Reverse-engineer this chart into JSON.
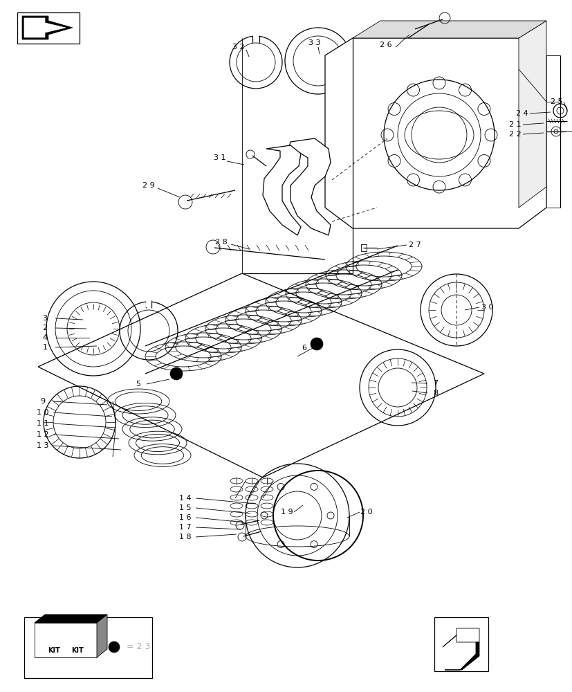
{
  "bg_color": "#ffffff",
  "figsize": [
    8.28,
    10.0
  ],
  "dpi": 100,
  "lw_thin": 0.6,
  "lw_med": 0.9,
  "lw_thick": 1.4,
  "gray": "#aaaaaa"
}
